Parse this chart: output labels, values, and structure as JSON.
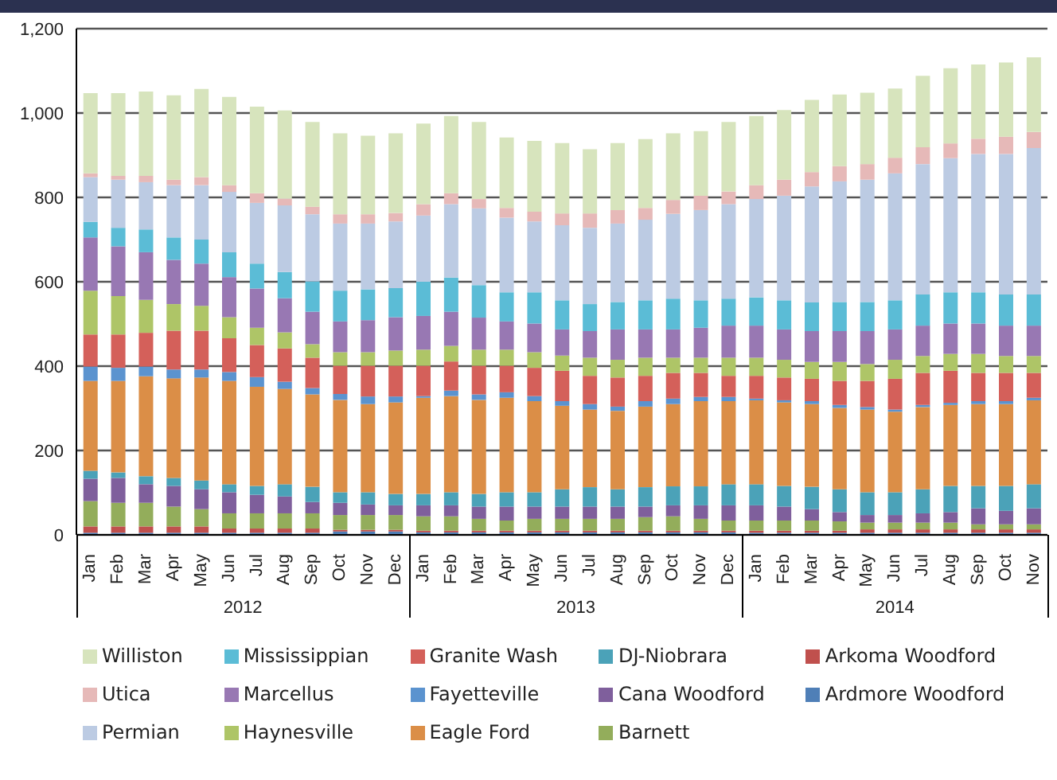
{
  "chart_data": {
    "type": "bar",
    "stacked": true,
    "grid": "y",
    "legend": "bottom",
    "categories": [
      "Jan",
      "Feb",
      "Mar",
      "Apr",
      "May",
      "Jun",
      "Jul",
      "Aug",
      "Sep",
      "Oct",
      "Nov",
      "Dec",
      "Jan",
      "Feb",
      "Mar",
      "Apr",
      "May",
      "Jun",
      "Jul",
      "Aug",
      "Sep",
      "Oct",
      "Nov",
      "Dec",
      "Jan",
      "Feb",
      "Mar",
      "Apr",
      "May",
      "Jun",
      "Jul",
      "Aug",
      "Sep",
      "Oct",
      "Nov"
    ],
    "annotations": [
      "2012",
      "2013",
      "2014"
    ],
    "ylim": [
      0,
      1200
    ],
    "yticks": [
      0,
      200,
      400,
      600,
      800,
      {
        "value": 1000,
        "label": "1,000"
      },
      {
        "value": 1200,
        "label": "1,200"
      }
    ],
    "series": [
      {
        "name": "Ardmore Woodford",
        "color": "#4f7fb7",
        "values": [
          5,
          5,
          5,
          5,
          5,
          5,
          5,
          5,
          5,
          8,
          8,
          8,
          6,
          6,
          6,
          6,
          6,
          6,
          6,
          6,
          6,
          6,
          6,
          6,
          5,
          5,
          5,
          5,
          5,
          5,
          5,
          5,
          5,
          5,
          5
        ]
      },
      {
        "name": "Arkoma Woodford",
        "color": "#c0504d",
        "values": [
          15,
          15,
          15,
          15,
          15,
          10,
          10,
          10,
          10,
          4,
          4,
          4,
          4,
          4,
          4,
          4,
          4,
          4,
          4,
          4,
          4,
          4,
          4,
          4,
          5,
          5,
          5,
          5,
          8,
          8,
          8,
          8,
          8,
          8,
          8
        ]
      },
      {
        "name": "Barnett",
        "color": "#93ad5b",
        "values": [
          60,
          56,
          56,
          47,
          41,
          36,
          36,
          36,
          36,
          35,
          35,
          35,
          34,
          34,
          28,
          24,
          28,
          28,
          28,
          28,
          32,
          34,
          28,
          24,
          24,
          24,
          24,
          22,
          16,
          16,
          16,
          16,
          12,
          12,
          12
        ]
      },
      {
        "name": "Cana Woodford",
        "color": "#7f5f9c",
        "values": [
          53,
          59,
          44,
          49,
          47,
          50,
          44,
          40,
          27,
          29,
          25,
          23,
          26,
          26,
          29,
          33,
          29,
          29,
          29,
          29,
          25,
          26,
          32,
          36,
          36,
          33,
          27,
          22,
          18,
          18,
          22,
          25,
          38,
          32,
          38
        ]
      },
      {
        "name": "DJ-Niobrara",
        "color": "#4ba2b8",
        "values": [
          19,
          13,
          19,
          19,
          21,
          19,
          21,
          29,
          36,
          25,
          29,
          27,
          27,
          31,
          30,
          34,
          34,
          41,
          46,
          41,
          46,
          45,
          45,
          50,
          50,
          49,
          53,
          54,
          54,
          54,
          57,
          62,
          53,
          59,
          57
        ]
      },
      {
        "name": "Eagle Ford",
        "color": "#db8e47",
        "values": [
          213,
          217,
          237,
          236,
          244,
          245,
          235,
          226,
          219,
          219,
          209,
          217,
          228,
          228,
          223,
          224,
          216,
          198,
          184,
          186,
          191,
          195,
          202,
          197,
          199,
          198,
          196,
          193,
          196,
          191,
          195,
          192,
          194,
          194,
          199
        ]
      },
      {
        "name": "Fayetteville",
        "color": "#5b93cf",
        "values": [
          34,
          31,
          23,
          21,
          19,
          21,
          23,
          17,
          15,
          14,
          18,
          14,
          4,
          13,
          13,
          13,
          12,
          11,
          13,
          10,
          13,
          13,
          10,
          10,
          4,
          5,
          7,
          7,
          6,
          5,
          5,
          5,
          7,
          7,
          6
        ]
      },
      {
        "name": "Granite Wash",
        "color": "#d4605a",
        "values": [
          76,
          79,
          80,
          92,
          92,
          80,
          76,
          79,
          72,
          67,
          73,
          73,
          72,
          69,
          68,
          63,
          67,
          72,
          67,
          69,
          60,
          61,
          57,
          50,
          54,
          54,
          53,
          57,
          62,
          73,
          76,
          76,
          67,
          67,
          59
        ]
      },
      {
        "name": "Haynesville",
        "color": "#aec567",
        "values": [
          104,
          91,
          78,
          63,
          59,
          50,
          41,
          38,
          32,
          32,
          32,
          36,
          38,
          37,
          38,
          38,
          37,
          36,
          43,
          42,
          43,
          36,
          36,
          43,
          43,
          42,
          40,
          45,
          40,
          45,
          40,
          40,
          45,
          40,
          40
        ]
      },
      {
        "name": "Marcellus",
        "color": "#9878b3",
        "values": [
          126,
          118,
          113,
          105,
          100,
          95,
          93,
          81,
          77,
          73,
          76,
          79,
          80,
          81,
          76,
          67,
          68,
          62,
          63,
          72,
          67,
          67,
          71,
          76,
          76,
          72,
          73,
          73,
          78,
          72,
          72,
          72,
          72,
          72,
          72
        ]
      },
      {
        "name": "Mississippian",
        "color": "#5bbcd6",
        "values": [
          37,
          44,
          54,
          53,
          57,
          59,
          59,
          62,
          72,
          73,
          73,
          69,
          81,
          81,
          77,
          69,
          74,
          69,
          64,
          65,
          69,
          73,
          65,
          64,
          67,
          69,
          68,
          69,
          69,
          69,
          74,
          74,
          74,
          74,
          74
        ]
      },
      {
        "name": "Permian",
        "color": "#bccbe3",
        "values": [
          106,
          114,
          112,
          124,
          129,
          143,
          144,
          158,
          159,
          159,
          156,
          158,
          157,
          174,
          182,
          177,
          168,
          178,
          181,
          186,
          191,
          201,
          214,
          224,
          233,
          248,
          275,
          286,
          290,
          301,
          309,
          318,
          328,
          333,
          347
        ]
      },
      {
        "name": "Utica",
        "color": "#e6b9b8",
        "values": [
          9,
          9,
          15,
          13,
          19,
          16,
          23,
          16,
          18,
          22,
          22,
          20,
          27,
          26,
          22,
          23,
          23,
          28,
          34,
          32,
          28,
          33,
          34,
          30,
          33,
          38,
          34,
          36,
          37,
          37,
          40,
          35,
          36,
          41,
          38
        ]
      },
      {
        "name": "Williston",
        "color": "#d7e4bd",
        "values": [
          190,
          196,
          200,
          200,
          209,
          209,
          205,
          209,
          201,
          192,
          186,
          189,
          191,
          183,
          183,
          167,
          168,
          167,
          152,
          159,
          163,
          158,
          153,
          165,
          164,
          165,
          171,
          170,
          169,
          164,
          169,
          178,
          176,
          176,
          177
        ]
      }
    ]
  }
}
